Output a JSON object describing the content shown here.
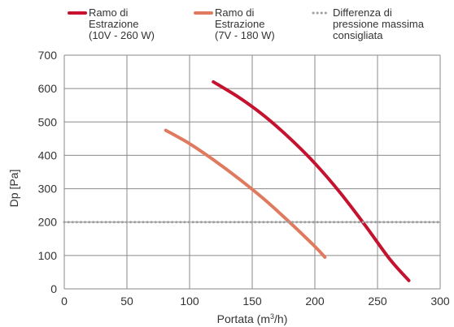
{
  "chart_data": {
    "type": "line",
    "xlabel": "Portata (m³/h)",
    "xlabel_parts": {
      "main": "Portata (m",
      "sup": "3",
      "end": "/h)"
    },
    "ylabel": "Dp [Pa]",
    "xlim": [
      0,
      300
    ],
    "ylim": [
      0,
      700
    ],
    "xticks": [
      0,
      50,
      100,
      150,
      200,
      250,
      300
    ],
    "yticks": [
      0,
      100,
      200,
      300,
      400,
      500,
      600,
      700
    ],
    "grid": true,
    "legend_position": "top",
    "series": [
      {
        "name": "Ramo di Estrazione (10V - 260 W)",
        "legend_lines": [
          "Ramo di",
          "Estrazione",
          "(10V - 260 W)"
        ],
        "color": "#c4122f",
        "style": "solid",
        "x": [
          119,
          140,
          160,
          180,
          200,
          220,
          240,
          260,
          275
        ],
        "y": [
          620,
          572,
          517,
          451,
          376,
          289,
          191,
          88,
          25
        ]
      },
      {
        "name": "Ramo di Estrazione (7V - 180 W)",
        "legend_lines": [
          "Ramo di",
          "Estrazione",
          "(7V - 180 W)"
        ],
        "color": "#e07a5f",
        "style": "solid",
        "x": [
          81,
          100,
          120,
          140,
          160,
          180,
          200,
          208
        ],
        "y": [
          475,
          435,
          384,
          328,
          267,
          199,
          127,
          95
        ]
      },
      {
        "name": "Differenza di pressione massima consigliata",
        "legend_lines": [
          "Differenza di",
          "pressione massima",
          "consigliata"
        ],
        "color": "#a0a0a0",
        "style": "dotted",
        "x": [
          0,
          300
        ],
        "y": [
          200,
          200
        ]
      }
    ]
  }
}
